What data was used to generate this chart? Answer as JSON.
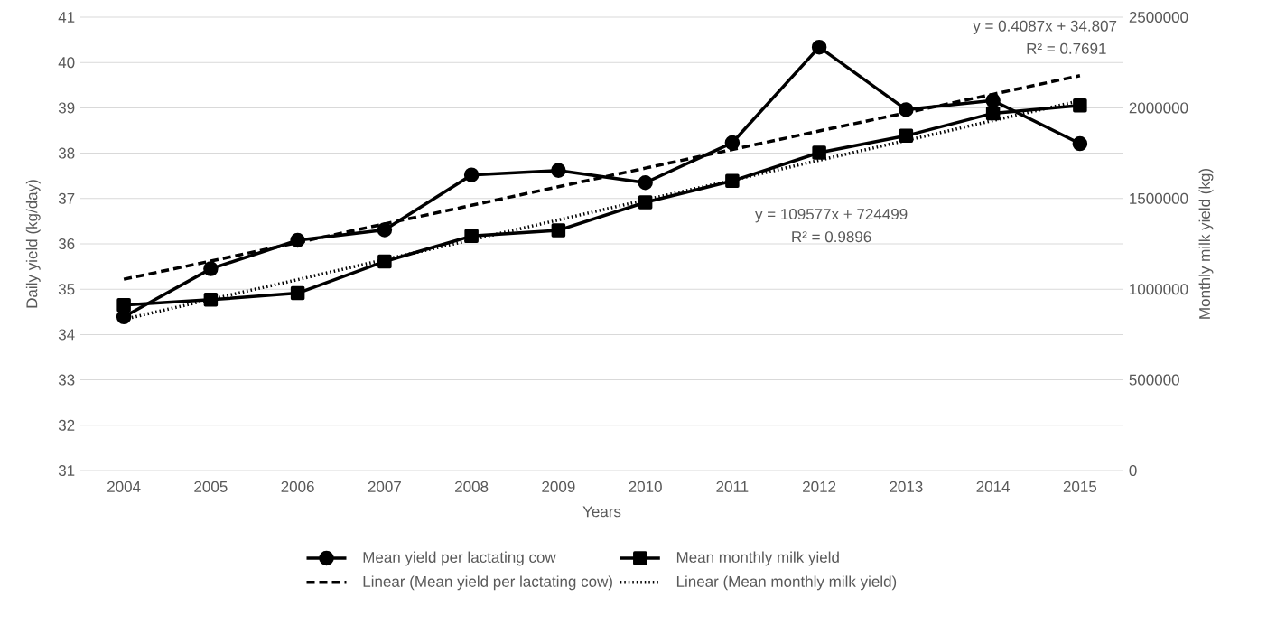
{
  "chart_data": {
    "type": "line",
    "xlabel": "Years",
    "ylabel": "Daily yield (kg/day)",
    "y2label": "Monthly milk yield (kg)",
    "categories": [
      "2004",
      "2005",
      "2006",
      "2007",
      "2008",
      "2009",
      "2010",
      "2011",
      "2012",
      "2013",
      "2014",
      "2015"
    ],
    "series": [
      {
        "name": "Mean yield per lactating cow",
        "color": "#000000",
        "marker": "circle",
        "values": [
          34.39,
          35.45,
          36.08,
          36.31,
          37.52,
          37.62,
          37.35,
          38.23,
          40.34,
          38.96,
          39.16,
          38.21
        ]
      },
      {
        "name": "Mean monthly milk yield",
        "color": "#000000",
        "marker": "square",
        "axis": "y2",
        "values": [
          913000,
          942000,
          978000,
          1153000,
          1293000,
          1325000,
          1479000,
          1597000,
          1753000,
          1846000,
          1970000,
          2013000
        ]
      },
      {
        "name": "Linear (Mean yield per lactating cow)",
        "type": "line",
        "color": "#000000",
        "marker": "none",
        "line_style": "dashed",
        "values": [
          35.22,
          35.62,
          36.03,
          36.44,
          36.85,
          37.26,
          37.67,
          38.08,
          38.49,
          38.89,
          39.3,
          39.71
        ]
      },
      {
        "name": "Linear (Mean monthly milk yield)",
        "type": "line",
        "color": "#000000",
        "marker": "none",
        "line_style": "dotted",
        "axis": "y2",
        "values": [
          834000,
          944000,
          1053000,
          1163000,
          1272000,
          1382000,
          1492000,
          1601000,
          1711000,
          1820000,
          1930000,
          2039000
        ]
      }
    ],
    "ylim": [
      31,
      41
    ],
    "yticks": [
      31,
      32,
      33,
      34,
      35,
      36,
      37,
      38,
      39,
      40,
      41
    ],
    "y2lim": [
      0,
      2500000
    ],
    "y2ticks": [
      0,
      500000,
      1000000,
      1500000,
      2000000,
      2500000
    ],
    "annotations": [
      "y = 0.4087x + 34.807",
      "R² = 0.7691",
      "y = 109577x + 724499",
      "R² = 0.9896"
    ],
    "grid": "y",
    "legend": "bottom",
    "line_style": "solid"
  }
}
